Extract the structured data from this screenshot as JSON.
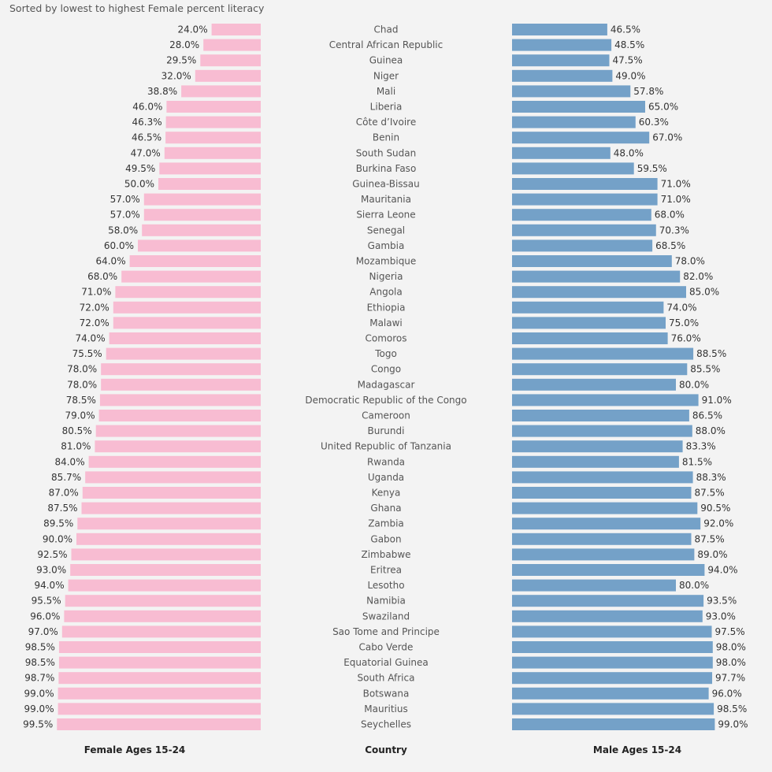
{
  "subtitle": "Sorted by lowest to highest Female percent literacy",
  "chart_data": {
    "type": "bar",
    "orientation": "horizontal",
    "layout": "diverging-butterfly",
    "subtitle": "Sorted by lowest to highest Female percent literacy",
    "value_format": "percent, 1 decimal",
    "columns": [
      {
        "key": "female",
        "title": "Female Ages 15-24",
        "color": "#f8bcd2",
        "direction": "left"
      },
      {
        "key": "country",
        "title": "Country"
      },
      {
        "key": "male",
        "title": "Male Ages 15-24",
        "color": "#74a1c8",
        "direction": "right"
      }
    ],
    "xlim": [
      0,
      100
    ],
    "categories": [
      "Chad",
      "Central African Republic",
      "Guinea",
      "Niger",
      "Mali",
      "Liberia",
      "Côte d’Ivoire",
      "Benin",
      "South Sudan",
      "Burkina Faso",
      "Guinea-Bissau",
      "Mauritania",
      "Sierra Leone",
      "Senegal",
      "Gambia",
      "Mozambique",
      "Nigeria",
      "Angola",
      "Ethiopia",
      "Malawi",
      "Comoros",
      "Togo",
      "Congo",
      "Madagascar",
      "Democratic Republic of the Congo",
      "Cameroon",
      "Burundi",
      "United Republic of Tanzania",
      "Rwanda",
      "Uganda",
      "Kenya",
      "Ghana",
      "Zambia",
      "Gabon",
      "Zimbabwe",
      "Eritrea",
      "Lesotho",
      "Namibia",
      "Swaziland",
      "Sao Tome and Principe",
      "Cabo Verde",
      "Equatorial Guinea",
      "South Africa",
      "Botswana",
      "Mauritius",
      "Seychelles"
    ],
    "series": [
      {
        "name": "Female Ages 15-24",
        "values": [
          24.0,
          28.0,
          29.5,
          32.0,
          38.8,
          46.0,
          46.3,
          46.5,
          47.0,
          49.5,
          50.0,
          57.0,
          57.0,
          58.0,
          60.0,
          64.0,
          68.0,
          71.0,
          72.0,
          72.0,
          74.0,
          75.5,
          78.0,
          78.0,
          78.5,
          79.0,
          80.5,
          81.0,
          84.0,
          85.7,
          87.0,
          87.5,
          89.5,
          90.0,
          92.5,
          93.0,
          94.0,
          95.5,
          96.0,
          97.0,
          98.5,
          98.5,
          98.7,
          99.0,
          99.0,
          99.5
        ]
      },
      {
        "name": "Male Ages 15-24",
        "values": [
          46.5,
          48.5,
          47.5,
          49.0,
          57.8,
          65.0,
          60.3,
          67.0,
          48.0,
          59.5,
          71.0,
          71.0,
          68.0,
          70.3,
          68.5,
          78.0,
          82.0,
          85.0,
          74.0,
          75.0,
          76.0,
          88.5,
          85.5,
          80.0,
          91.0,
          86.5,
          88.0,
          83.3,
          81.5,
          88.3,
          87.5,
          90.5,
          92.0,
          87.5,
          89.0,
          94.0,
          80.0,
          93.5,
          93.0,
          97.5,
          98.0,
          98.0,
          97.7,
          96.0,
          98.5,
          99.0
        ]
      }
    ]
  }
}
